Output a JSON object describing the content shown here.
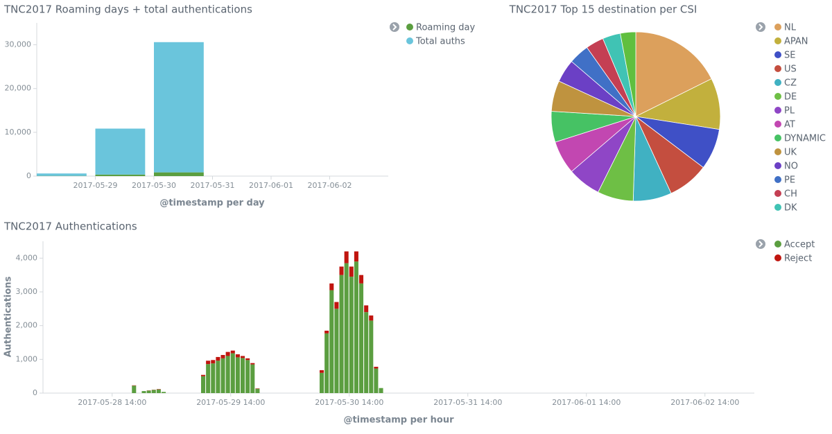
{
  "chart_data": [
    {
      "type": "bar",
      "stacked": true,
      "title": "TNC2017 Roaming days + total authentications",
      "x_label": "@timestamp per day",
      "x": [
        "2017-05-28",
        "2017-05-29",
        "2017-05-30"
      ],
      "xlim": [
        "2017-05-28",
        "2017-06-03"
      ],
      "xticks": [
        "2017-05-29",
        "2017-05-30",
        "2017-05-31",
        "2017-06-01",
        "2017-06-02"
      ],
      "ylim": [
        0,
        35000
      ],
      "yticks": [
        0,
        {
          "value": 10000,
          "label": "10,000"
        },
        {
          "value": 20000,
          "label": "20,000"
        },
        {
          "value": 30000,
          "label": "30,000"
        }
      ],
      "series": [
        {
          "name": "Roaming day",
          "color": "#5b9e40",
          "values": [
            50,
            350,
            850
          ]
        },
        {
          "name": "Total auths",
          "color": "#6ac5dc",
          "values": [
            550,
            10500,
            29750
          ]
        }
      ]
    },
    {
      "type": "pie",
      "title": "TNC2017 Top 15 destination per CSI",
      "categories": [
        "NL",
        "APAN",
        "SE",
        "US",
        "CZ",
        "DE",
        "PL",
        "AT",
        "DYNAMIC",
        "UK",
        "NO",
        "PE",
        "CH",
        "DK",
        null
      ],
      "values": [
        18,
        10,
        8,
        8,
        7.5,
        7,
        6.5,
        6.5,
        6,
        6,
        4.5,
        4,
        3.5,
        3.5,
        3
      ],
      "colors": [
        "#dca05c",
        "#c2b03d",
        "#3f50c6",
        "#c44e3f",
        "#40b1c2",
        "#6ebf45",
        "#8f46c6",
        "#c247b1",
        "#46c264",
        "#bf933f",
        "#6b40c5",
        "#4070c6",
        "#c43f53",
        "#40c3b4",
        "#60bf3f"
      ]
    },
    {
      "type": "bar",
      "stacked": true,
      "title": "TNC2017 Authentications",
      "x_label": "@timestamp per hour",
      "y_label": "Authentications",
      "x": [
        "2017-05-28 18:00",
        "2017-05-28 20:00",
        "2017-05-28 21:00",
        "2017-05-28 22:00",
        "2017-05-28 23:00",
        "2017-05-29 00:00",
        "2017-05-29 08:00",
        "2017-05-29 09:00",
        "2017-05-29 10:00",
        "2017-05-29 11:00",
        "2017-05-29 12:00",
        "2017-05-29 13:00",
        "2017-05-29 14:00",
        "2017-05-29 15:00",
        "2017-05-29 16:00",
        "2017-05-29 17:00",
        "2017-05-29 18:00",
        "2017-05-29 19:00",
        "2017-05-30 08:00",
        "2017-05-30 09:00",
        "2017-05-30 10:00",
        "2017-05-30 11:00",
        "2017-05-30 12:00",
        "2017-05-30 13:00",
        "2017-05-30 14:00",
        "2017-05-30 15:00",
        "2017-05-30 16:00",
        "2017-05-30 17:00",
        "2017-05-30 18:00",
        "2017-05-30 19:00",
        "2017-05-30 20:00"
      ],
      "xlim": [
        "2017-05-28 00:00",
        "2017-06-03 00:00"
      ],
      "xticks": [
        "2017-05-28 14:00",
        "2017-05-29 14:00",
        "2017-05-30 14:00",
        "2017-05-31 14:00",
        "2017-06-01 14:00",
        "2017-06-02 14:00"
      ],
      "ylim": [
        0,
        4500
      ],
      "yticks": [
        0,
        {
          "value": 1000,
          "label": "1,000"
        },
        {
          "value": 2000,
          "label": "2,000"
        },
        {
          "value": 3000,
          "label": "3,000"
        },
        {
          "value": 4000,
          "label": "4,000"
        }
      ],
      "series": [
        {
          "name": "Accept",
          "color": "#5b9e40",
          "values": [
            220,
            60,
            75,
            95,
            110,
            35,
            500,
            860,
            880,
            960,
            1030,
            1100,
            1180,
            1060,
            1040,
            980,
            850,
            130,
            600,
            1770,
            3050,
            2500,
            3500,
            3850,
            3450,
            3900,
            3250,
            2400,
            2150,
            730,
            150
          ]
        },
        {
          "name": "Reject",
          "color": "#c0150f",
          "values": [
            10,
            0,
            5,
            5,
            10,
            0,
            40,
            100,
            100,
            110,
            100,
            120,
            80,
            90,
            60,
            50,
            40,
            10,
            80,
            80,
            200,
            200,
            250,
            350,
            300,
            300,
            250,
            200,
            150,
            50,
            0
          ]
        }
      ]
    }
  ]
}
